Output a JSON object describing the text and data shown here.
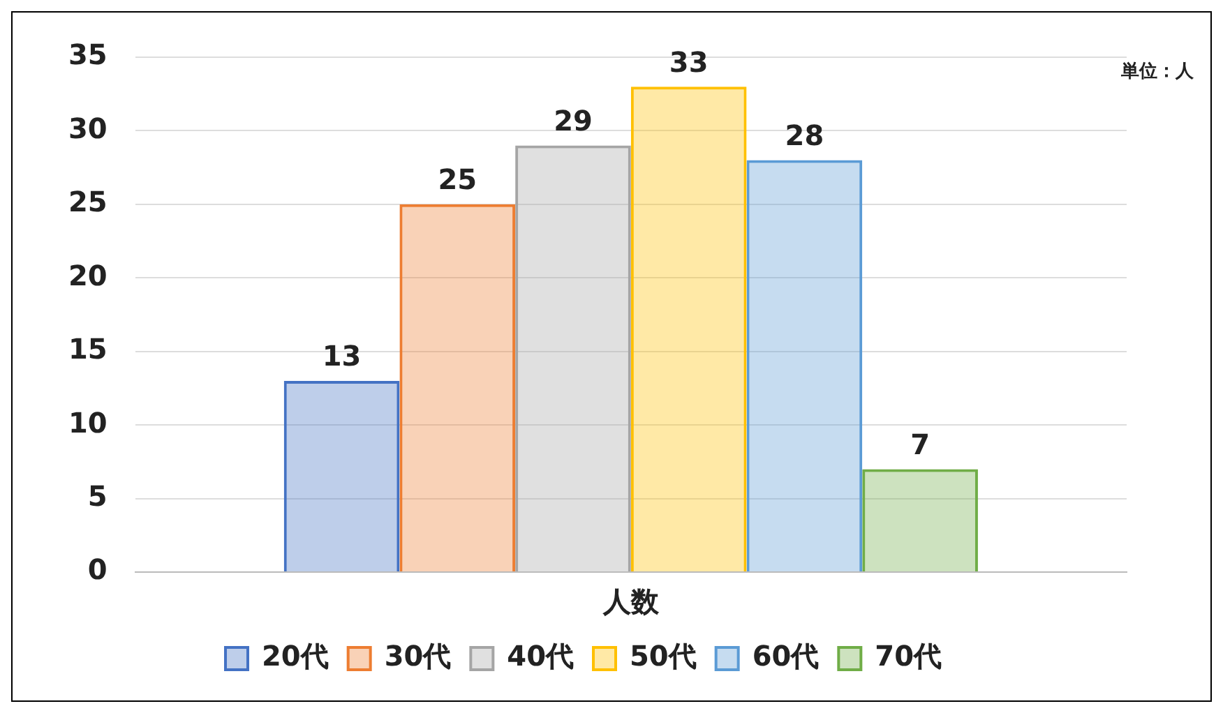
{
  "chart_data": {
    "type": "bar",
    "categories": [
      "人数"
    ],
    "series": [
      {
        "name": "20代",
        "color": "#4472c4",
        "values": [
          13
        ]
      },
      {
        "name": "30代",
        "color": "#ed7d31",
        "values": [
          25
        ]
      },
      {
        "name": "40代",
        "color": "#a5a5a5",
        "values": [
          29
        ]
      },
      {
        "name": "50代",
        "color": "#ffc000",
        "values": [
          33
        ]
      },
      {
        "name": "60代",
        "color": "#5b9bd5",
        "values": [
          28
        ]
      },
      {
        "name": "70代",
        "color": "#70ad47",
        "values": [
          7
        ]
      }
    ],
    "ylim": [
      0,
      35
    ],
    "yticks": [
      0,
      5,
      10,
      15,
      20,
      25,
      30,
      35
    ],
    "grid": "y",
    "legend": "bottom",
    "data_labels": true,
    "annotations": [
      "単位：人"
    ]
  }
}
